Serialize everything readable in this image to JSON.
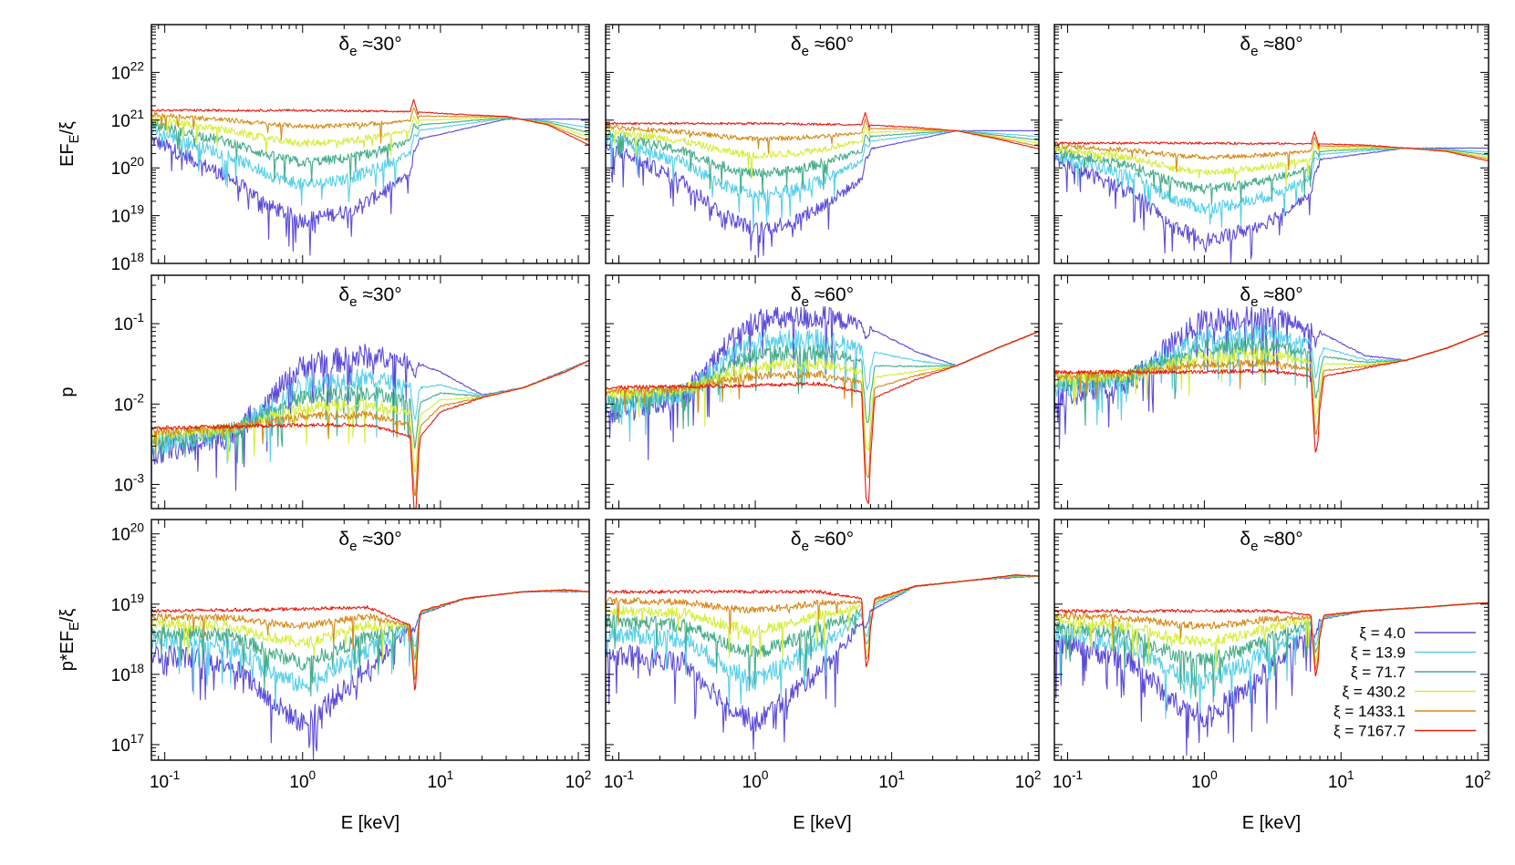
{
  "chart_data": {
    "type": "line",
    "grid": false,
    "legend_placement": "bottom-right (panel row 3, column 3)",
    "x_axis": {
      "label": "E [keV]",
      "scale": "log",
      "range": [
        0.08,
        120
      ],
      "tick_labels": [
        "10-1",
        "100",
        "101",
        "102"
      ]
    },
    "rows": [
      {
        "ylabel": "EFE/ξ",
        "scale": "log",
        "range": [
          1e+18,
          1e+23
        ],
        "tick_labels": [
          "1018",
          "1019",
          "1020",
          "1021",
          "1022"
        ]
      },
      {
        "ylabel": "p",
        "scale": "log",
        "range": [
          0.0005,
          0.4
        ],
        "tick_labels": [
          "10-3",
          "10-2",
          "10-1"
        ]
      },
      {
        "ylabel": "p*EFE/ξ",
        "scale": "log",
        "range": [
          6e+16,
          1.6e+20
        ],
        "tick_labels": [
          "1017",
          "1018",
          "1019",
          "1020"
        ]
      }
    ],
    "columns": [
      {
        "title": "δe ≈30°"
      },
      {
        "title": "δe ≈60°"
      },
      {
        "title": "δe ≈80°"
      }
    ],
    "series": [
      {
        "name": "ξ = 4.0",
        "color": "#5b4bd9"
      },
      {
        "name": "ξ = 13.9",
        "color": "#58cfea"
      },
      {
        "name": "ξ = 71.7",
        "color": "#47ad8a"
      },
      {
        "name": "ξ = 430.2",
        "color": "#d5ee3a"
      },
      {
        "name": "ξ = 1433.1",
        "color": "#d68a18"
      },
      {
        "name": "ξ = 7167.7",
        "color": "#e8190e"
      }
    ],
    "panels": [
      {
        "row": 0,
        "col": 0,
        "high": [
          [
            0.08,
            1.6e+21
          ],
          [
            1,
            1.6e+21
          ],
          [
            6.4,
            1.5e+21
          ],
          [
            15,
            1.3e+21
          ],
          [
            30,
            1.2e+21
          ],
          [
            60,
            8e+20
          ],
          [
            120,
            3e+20
          ]
        ],
        "low": [
          [
            0.08,
            4e+20
          ],
          [
            0.3,
            6e+19
          ],
          [
            0.6,
            1.5e+19
          ],
          [
            1,
            8e+18
          ],
          [
            2,
            1.2e+19
          ],
          [
            3,
            2e+19
          ],
          [
            6.2,
            8e+19
          ],
          [
            7,
            4e+20
          ],
          [
            30,
            1.05e+21
          ]
        ]
      },
      {
        "row": 0,
        "col": 1,
        "high": [
          [
            0.08,
            8.5e+20
          ],
          [
            1,
            8.5e+20
          ],
          [
            6.4,
            8e+20
          ],
          [
            15,
            7e+20
          ],
          [
            30,
            6e+20
          ],
          [
            60,
            4e+20
          ],
          [
            120,
            2.5e+20
          ]
        ],
        "low": [
          [
            0.08,
            3e+20
          ],
          [
            0.3,
            5e+19
          ],
          [
            0.6,
            1e+19
          ],
          [
            1,
            5e+18
          ],
          [
            2,
            8e+18
          ],
          [
            3,
            1.5e+19
          ],
          [
            6.2,
            6e+19
          ],
          [
            7,
            2.5e+20
          ],
          [
            30,
            6e+20
          ]
        ]
      },
      {
        "row": 0,
        "col": 2,
        "high": [
          [
            0.08,
            3.3e+20
          ],
          [
            1,
            3.3e+20
          ],
          [
            6.4,
            3.2e+20
          ],
          [
            15,
            3e+20
          ],
          [
            30,
            2.6e+20
          ],
          [
            60,
            2.2e+20
          ],
          [
            120,
            1.4e+20
          ]
        ],
        "low": [
          [
            0.08,
            1.5e+20
          ],
          [
            0.3,
            3e+19
          ],
          [
            0.6,
            6e+18
          ],
          [
            1,
            3e+18
          ],
          [
            2,
            5e+18
          ],
          [
            3,
            8e+18
          ],
          [
            6.2,
            3e+19
          ],
          [
            7,
            1.5e+20
          ],
          [
            30,
            2.6e+20
          ]
        ]
      },
      {
        "row": 1,
        "col": 0,
        "high": [
          [
            0.08,
            0.005
          ],
          [
            1,
            0.0055
          ],
          [
            3,
            0.0055
          ],
          [
            6,
            0.004
          ],
          [
            6.6,
            0.0012
          ],
          [
            7.2,
            0.004
          ],
          [
            10,
            0.008
          ],
          [
            20,
            0.012
          ],
          [
            40,
            0.016
          ],
          [
            80,
            0.025
          ],
          [
            120,
            0.035
          ]
        ],
        "low": [
          [
            0.08,
            0.0025
          ],
          [
            0.3,
            0.004
          ],
          [
            0.6,
            0.012
          ],
          [
            1,
            0.03
          ],
          [
            3,
            0.04
          ],
          [
            6,
            0.035
          ],
          [
            10,
            0.025
          ],
          [
            20,
            0.013
          ],
          [
            40,
            0.016
          ],
          [
            120,
            0.035
          ]
        ]
      },
      {
        "row": 1,
        "col": 1,
        "high": [
          [
            0.08,
            0.016
          ],
          [
            1,
            0.017
          ],
          [
            3,
            0.018
          ],
          [
            6,
            0.014
          ],
          [
            6.8,
            0.001
          ],
          [
            7.5,
            0.012
          ],
          [
            15,
            0.02
          ],
          [
            30,
            0.03
          ],
          [
            60,
            0.05
          ],
          [
            120,
            0.08
          ]
        ],
        "low": [
          [
            0.08,
            0.008
          ],
          [
            0.3,
            0.012
          ],
          [
            0.6,
            0.05
          ],
          [
            1,
            0.11
          ],
          [
            3,
            0.12
          ],
          [
            6,
            0.1
          ],
          [
            15,
            0.045
          ],
          [
            30,
            0.03
          ],
          [
            60,
            0.05
          ],
          [
            120,
            0.08
          ]
        ]
      },
      {
        "row": 1,
        "col": 2,
        "high": [
          [
            0.08,
            0.025
          ],
          [
            1,
            0.025
          ],
          [
            3,
            0.026
          ],
          [
            6,
            0.022
          ],
          [
            6.8,
            0.006
          ],
          [
            7.5,
            0.022
          ],
          [
            15,
            0.028
          ],
          [
            30,
            0.035
          ],
          [
            60,
            0.05
          ],
          [
            120,
            0.08
          ]
        ],
        "low": [
          [
            0.08,
            0.012
          ],
          [
            0.3,
            0.02
          ],
          [
            0.6,
            0.06
          ],
          [
            1,
            0.11
          ],
          [
            3,
            0.12
          ],
          [
            6,
            0.09
          ],
          [
            15,
            0.04
          ],
          [
            30,
            0.035
          ],
          [
            60,
            0.05
          ],
          [
            120,
            0.08
          ]
        ]
      },
      {
        "row": 2,
        "col": 0,
        "high": [
          [
            0.08,
            8e+18
          ],
          [
            1,
            8.5e+18
          ],
          [
            3,
            9e+18
          ],
          [
            6,
            5e+18
          ],
          [
            6.6,
            2e+18
          ],
          [
            7.2,
            8e+18
          ],
          [
            15,
            1.2e+19
          ],
          [
            40,
            1.5e+19
          ],
          [
            80,
            1.6e+19
          ],
          [
            120,
            1.5e+19
          ]
        ],
        "low": [
          [
            0.08,
            2e+18
          ],
          [
            0.3,
            1.5e+18
          ],
          [
            0.6,
            4e+17
          ],
          [
            1,
            2e+17
          ],
          [
            2,
            6e+17
          ],
          [
            4,
            2e+18
          ],
          [
            7,
            7e+18
          ],
          [
            15,
            1.2e+19
          ],
          [
            40,
            1.5e+19
          ],
          [
            120,
            1.5e+19
          ]
        ]
      },
      {
        "row": 2,
        "col": 1,
        "high": [
          [
            0.08,
            1.5e+19
          ],
          [
            1,
            1.5e+19
          ],
          [
            3,
            1.5e+19
          ],
          [
            6,
            1.2e+19
          ],
          [
            6.8,
            3e+18
          ],
          [
            7.5,
            1.2e+19
          ],
          [
            15,
            1.8e+19
          ],
          [
            40,
            2.2e+19
          ],
          [
            80,
            2.6e+19
          ],
          [
            120,
            2.5e+19
          ]
        ],
        "low": [
          [
            0.08,
            2e+18
          ],
          [
            0.3,
            1.5e+18
          ],
          [
            0.6,
            4e+17
          ],
          [
            1,
            2e+17
          ],
          [
            2,
            6e+17
          ],
          [
            4,
            2e+18
          ],
          [
            7,
            8e+18
          ],
          [
            15,
            1.8e+19
          ],
          [
            40,
            2.2e+19
          ],
          [
            120,
            2.5e+19
          ]
        ]
      },
      {
        "row": 2,
        "col": 2,
        "high": [
          [
            0.08,
            8e+18
          ],
          [
            1,
            8e+18
          ],
          [
            3,
            8e+18
          ],
          [
            6,
            7e+18
          ],
          [
            6.8,
            2.5e+18
          ],
          [
            7.5,
            7e+18
          ],
          [
            15,
            8e+18
          ],
          [
            40,
            9e+18
          ],
          [
            80,
            1e+19
          ],
          [
            120,
            1.05e+19
          ]
        ],
        "low": [
          [
            0.08,
            3e+18
          ],
          [
            0.3,
            1.5e+18
          ],
          [
            0.6,
            4e+17
          ],
          [
            1,
            2.5e+17
          ],
          [
            2,
            6e+17
          ],
          [
            4,
            2e+18
          ],
          [
            7,
            6e+18
          ],
          [
            15,
            8e+18
          ],
          [
            40,
            9e+18
          ],
          [
            120,
            1.05e+19
          ]
        ]
      }
    ]
  }
}
